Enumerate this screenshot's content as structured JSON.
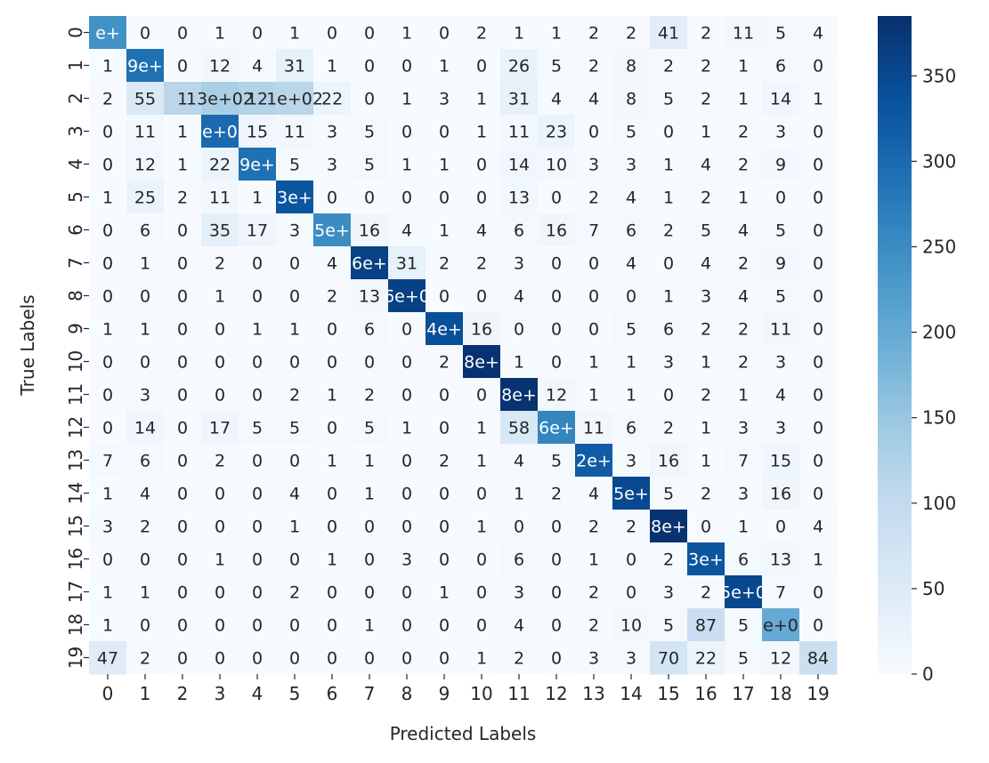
{
  "chart_data": {
    "type": "heatmap",
    "title": "",
    "xlabel": "Predicted Labels",
    "ylabel": "True Labels",
    "x_categories": [
      "0",
      "1",
      "2",
      "3",
      "4",
      "5",
      "6",
      "7",
      "8",
      "9",
      "10",
      "11",
      "12",
      "13",
      "14",
      "15",
      "16",
      "17",
      "18",
      "19"
    ],
    "y_categories": [
      "0",
      "1",
      "2",
      "3",
      "4",
      "5",
      "6",
      "7",
      "8",
      "9",
      "10",
      "11",
      "12",
      "13",
      "14",
      "15",
      "16",
      "17",
      "18",
      "19"
    ],
    "values": [
      [
        240,
        0,
        0,
        1,
        0,
        1,
        0,
        0,
        1,
        0,
        2,
        1,
        1,
        2,
        2,
        41,
        2,
        11,
        5,
        4
      ],
      [
        1,
        290,
        0,
        12,
        4,
        31,
        1,
        0,
        0,
        1,
        0,
        26,
        5,
        2,
        8,
        2,
        2,
        1,
        6,
        0
      ],
      [
        2,
        55,
        110,
        130,
        120,
        110,
        22,
        0,
        1,
        3,
        1,
        31,
        4,
        4,
        8,
        5,
        2,
        1,
        14,
        1
      ],
      [
        0,
        11,
        1,
        300,
        15,
        11,
        3,
        5,
        0,
        0,
        1,
        11,
        23,
        0,
        5,
        0,
        1,
        2,
        3,
        0
      ],
      [
        0,
        12,
        1,
        22,
        290,
        5,
        3,
        5,
        1,
        1,
        0,
        14,
        10,
        3,
        3,
        1,
        4,
        2,
        9,
        0
      ],
      [
        1,
        25,
        2,
        11,
        1,
        330,
        0,
        0,
        0,
        0,
        0,
        13,
        0,
        2,
        4,
        1,
        2,
        1,
        0,
        0
      ],
      [
        0,
        6,
        0,
        35,
        17,
        3,
        250,
        16,
        4,
        1,
        4,
        6,
        16,
        7,
        6,
        2,
        5,
        4,
        5,
        0
      ],
      [
        0,
        1,
        0,
        2,
        0,
        0,
        4,
        360,
        31,
        2,
        2,
        3,
        0,
        0,
        4,
        0,
        4,
        2,
        9,
        0
      ],
      [
        0,
        0,
        0,
        1,
        0,
        0,
        2,
        13,
        360,
        0,
        0,
        4,
        0,
        0,
        0,
        1,
        3,
        4,
        5,
        0
      ],
      [
        1,
        1,
        0,
        0,
        1,
        1,
        0,
        6,
        0,
        340,
        16,
        0,
        0,
        0,
        5,
        6,
        2,
        2,
        11,
        0
      ],
      [
        0,
        0,
        0,
        0,
        0,
        0,
        0,
        0,
        0,
        2,
        380,
        1,
        0,
        1,
        1,
        3,
        1,
        2,
        3,
        0
      ],
      [
        0,
        3,
        0,
        0,
        0,
        2,
        1,
        2,
        0,
        0,
        0,
        380,
        12,
        1,
        1,
        0,
        2,
        1,
        4,
        0
      ],
      [
        0,
        14,
        0,
        17,
        5,
        5,
        0,
        5,
        1,
        0,
        1,
        58,
        260,
        11,
        6,
        2,
        1,
        3,
        3,
        0
      ],
      [
        7,
        6,
        0,
        2,
        0,
        0,
        1,
        1,
        0,
        2,
        1,
        4,
        5,
        320,
        3,
        16,
        1,
        7,
        15,
        0
      ],
      [
        1,
        4,
        0,
        0,
        0,
        4,
        0,
        1,
        0,
        0,
        0,
        1,
        2,
        4,
        350,
        5,
        2,
        3,
        16,
        0
      ],
      [
        3,
        2,
        0,
        0,
        0,
        1,
        0,
        0,
        0,
        0,
        1,
        0,
        0,
        2,
        2,
        380,
        0,
        1,
        0,
        4
      ],
      [
        0,
        0,
        0,
        1,
        0,
        0,
        1,
        0,
        3,
        0,
        0,
        6,
        0,
        1,
        0,
        2,
        330,
        6,
        13,
        1
      ],
      [
        1,
        1,
        0,
        0,
        0,
        2,
        0,
        0,
        0,
        1,
        0,
        3,
        0,
        2,
        0,
        3,
        2,
        350,
        7,
        0
      ],
      [
        1,
        0,
        0,
        0,
        0,
        0,
        0,
        1,
        0,
        0,
        0,
        4,
        0,
        2,
        10,
        5,
        87,
        5,
        200,
        0
      ],
      [
        47,
        2,
        0,
        0,
        0,
        0,
        0,
        0,
        0,
        0,
        1,
        2,
        0,
        3,
        3,
        70,
        22,
        5,
        12,
        84
      ]
    ],
    "labels": [
      [
        "e+",
        "0",
        "0",
        "1",
        "0",
        "1",
        "0",
        "0",
        "1",
        "0",
        "2",
        "1",
        "1",
        "2",
        "2",
        "41",
        "2",
        "11",
        "5",
        "4"
      ],
      [
        "1",
        "9e+",
        "0",
        "12",
        "4",
        "31",
        "1",
        "0",
        "0",
        "1",
        "0",
        "26",
        "5",
        "2",
        "8",
        "2",
        "2",
        "1",
        "6",
        "0"
      ],
      [
        "2",
        "55",
        "1",
        "13e+02",
        "12",
        "1e+02",
        "22",
        "0",
        "1",
        "3",
        "1",
        "31",
        "4",
        "4",
        "8",
        "5",
        "2",
        "1",
        "14",
        "1"
      ],
      [
        "0",
        "11",
        "1",
        "e+0",
        "15",
        "11",
        "3",
        "5",
        "0",
        "0",
        "1",
        "11",
        "23",
        "0",
        "5",
        "0",
        "1",
        "2",
        "3",
        "0"
      ],
      [
        "0",
        "12",
        "1",
        "22",
        "9e+",
        "5",
        "3",
        "5",
        "1",
        "1",
        "0",
        "14",
        "10",
        "3",
        "3",
        "1",
        "4",
        "2",
        "9",
        "0"
      ],
      [
        "1",
        "25",
        "2",
        "11",
        "1",
        "3e+",
        "0",
        "0",
        "0",
        "0",
        "0",
        "13",
        "0",
        "2",
        "4",
        "1",
        "2",
        "1",
        "0",
        "0"
      ],
      [
        "0",
        "6",
        "0",
        "35",
        "17",
        "3",
        "5e+",
        "16",
        "4",
        "1",
        "4",
        "6",
        "16",
        "7",
        "6",
        "2",
        "5",
        "4",
        "5",
        "0"
      ],
      [
        "0",
        "1",
        "0",
        "2",
        "0",
        "0",
        "4",
        "6e+",
        "31",
        "2",
        "2",
        "3",
        "0",
        "0",
        "4",
        "0",
        "4",
        "2",
        "9",
        "0"
      ],
      [
        "0",
        "0",
        "0",
        "1",
        "0",
        "0",
        "2",
        "13",
        "6e+0",
        "0",
        "0",
        "4",
        "0",
        "0",
        "0",
        "1",
        "3",
        "4",
        "5",
        "0"
      ],
      [
        "1",
        "1",
        "0",
        "0",
        "1",
        "1",
        "0",
        "6",
        "0",
        "4e+",
        "16",
        "0",
        "0",
        "0",
        "5",
        "6",
        "2",
        "2",
        "11",
        "0"
      ],
      [
        "0",
        "0",
        "0",
        "0",
        "0",
        "0",
        "0",
        "0",
        "0",
        "2",
        "8e+",
        "1",
        "0",
        "1",
        "1",
        "3",
        "1",
        "2",
        "3",
        "0"
      ],
      [
        "0",
        "3",
        "0",
        "0",
        "0",
        "2",
        "1",
        "2",
        "0",
        "0",
        "0",
        "8e+",
        "12",
        "1",
        "1",
        "0",
        "2",
        "1",
        "4",
        "0"
      ],
      [
        "0",
        "14",
        "0",
        "17",
        "5",
        "5",
        "0",
        "5",
        "1",
        "0",
        "1",
        "58",
        "6e+",
        "11",
        "6",
        "2",
        "1",
        "3",
        "3",
        "0"
      ],
      [
        "7",
        "6",
        "0",
        "2",
        "0",
        "0",
        "1",
        "1",
        "0",
        "2",
        "1",
        "4",
        "5",
        "2e+",
        "3",
        "16",
        "1",
        "7",
        "15",
        "0"
      ],
      [
        "1",
        "4",
        "0",
        "0",
        "0",
        "4",
        "0",
        "1",
        "0",
        "0",
        "0",
        "1",
        "2",
        "4",
        "5e+",
        "5",
        "2",
        "3",
        "16",
        "0"
      ],
      [
        "3",
        "2",
        "0",
        "0",
        "0",
        "1",
        "0",
        "0",
        "0",
        "0",
        "1",
        "0",
        "0",
        "2",
        "2",
        "8e+",
        "0",
        "1",
        "0",
        "4"
      ],
      [
        "0",
        "0",
        "0",
        "1",
        "0",
        "0",
        "1",
        "0",
        "3",
        "0",
        "0",
        "6",
        "0",
        "1",
        "0",
        "2",
        "3e+",
        "6",
        "13",
        "1"
      ],
      [
        "1",
        "1",
        "0",
        "0",
        "0",
        "2",
        "0",
        "0",
        "0",
        "1",
        "0",
        "3",
        "0",
        "2",
        "0",
        "3",
        "2",
        "5e+0",
        "7",
        "0"
      ],
      [
        "1",
        "0",
        "0",
        "0",
        "0",
        "0",
        "0",
        "1",
        "0",
        "0",
        "0",
        "4",
        "0",
        "2",
        "10",
        "5",
        "87",
        "5",
        "e+0",
        "0"
      ],
      [
        "47",
        "2",
        "0",
        "0",
        "0",
        "0",
        "0",
        "0",
        "0",
        "0",
        "1",
        "2",
        "0",
        "3",
        "3",
        "70",
        "22",
        "5",
        "12",
        "84"
      ]
    ],
    "colormap": "Blues",
    "colorbar": {
      "range": [
        0,
        385
      ],
      "ticks": [
        0,
        50,
        100,
        150,
        200,
        250,
        300,
        350
      ],
      "tick_labels": [
        "0",
        "50",
        "100",
        "150",
        "200",
        "250",
        "300",
        "350"
      ]
    },
    "grid": false,
    "legend": "colorbar-right"
  }
}
